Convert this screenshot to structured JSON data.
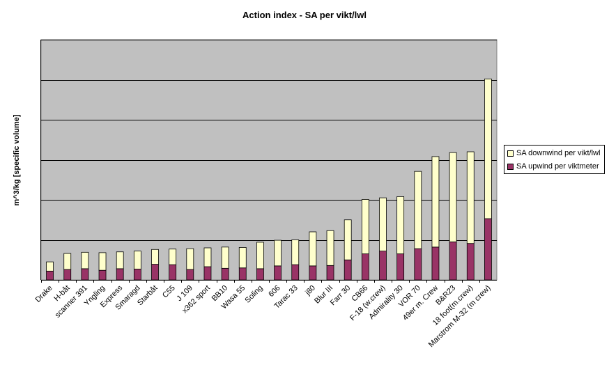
{
  "chart_data": {
    "type": "bar",
    "stacked": true,
    "title": "Action index - SA per vikt/lwl",
    "xlabel": "",
    "ylabel": "m^3/kg [specific volume]",
    "ylim": [
      0,
      6
    ],
    "y_gridlines": [
      1,
      2,
      3,
      4,
      5,
      6
    ],
    "y_tick_labels": false,
    "grid": true,
    "legend_position": "right",
    "categories": [
      "Drake",
      "H-båt",
      "scanner 391",
      "Yngling",
      "Express",
      "Smaragd",
      "Starbåt",
      "C55",
      "J 109",
      "x362 sport",
      "BB10",
      "Wasa 55",
      "Soling",
      "606",
      "Tarac 33",
      "j80",
      "Blur III",
      "Farr 30",
      "CB66",
      "F-18 (w.crew)",
      "Admirality 30",
      "VOR 70",
      "49er m. Crew",
      "B&R23",
      "18 foot(m.crew)",
      "Marstrom M-32 (m crew)"
    ],
    "series": [
      {
        "name": "SA upwind per viktmeter",
        "color": "#993366",
        "values": [
          0.22,
          0.26,
          0.28,
          0.24,
          0.28,
          0.27,
          0.39,
          0.38,
          0.26,
          0.33,
          0.29,
          0.3,
          0.28,
          0.35,
          0.38,
          0.35,
          0.36,
          0.5,
          0.65,
          0.72,
          0.65,
          0.78,
          0.82,
          0.95,
          0.91,
          1.53
        ]
      },
      {
        "name": "SA downwind per vikt/lwl",
        "color": "#ffffcc",
        "values": [
          0.23,
          0.4,
          0.41,
          0.44,
          0.42,
          0.45,
          0.37,
          0.39,
          0.52,
          0.47,
          0.53,
          0.51,
          0.66,
          0.64,
          0.62,
          0.85,
          0.87,
          1.0,
          1.36,
          1.33,
          1.43,
          1.93,
          2.26,
          2.23,
          2.29,
          3.49
        ]
      }
    ],
    "colors": {
      "plot_background": "#c0c0c0",
      "gridline": "#000000"
    }
  }
}
